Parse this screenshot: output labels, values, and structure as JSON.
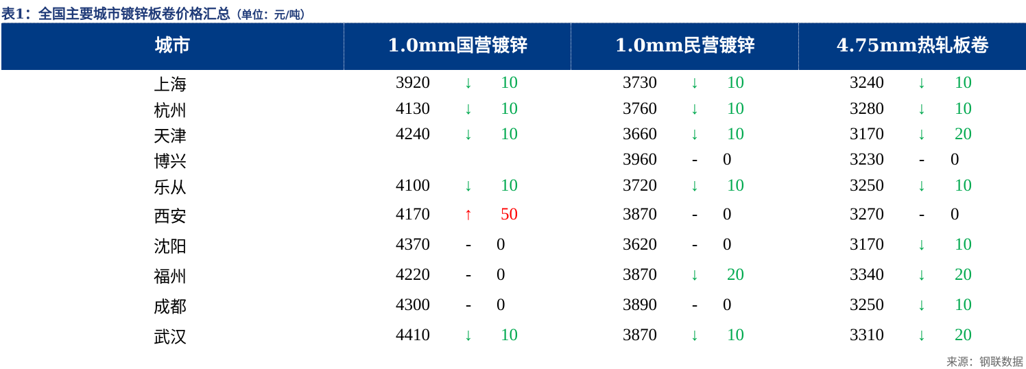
{
  "title": "表1：全国主要城市镀锌板卷价格汇总",
  "unit": "（单位：元/吨）",
  "headers": [
    "城市",
    "1.0mm国营镀锌",
    "1.0mm民营镀锌",
    "4.75mm热轧板卷"
  ],
  "rows": [
    {
      "city": "上海",
      "values": [
        [
          "3920",
          "down",
          "10"
        ],
        [
          "3730",
          "down",
          "10"
        ],
        [
          "3240",
          "down",
          "10"
        ]
      ]
    },
    {
      "city": "杭州",
      "values": [
        [
          "4130",
          "down",
          "10"
        ],
        [
          "3760",
          "down",
          "10"
        ],
        [
          "3280",
          "down",
          "10"
        ]
      ]
    },
    {
      "city": "天津",
      "values": [
        [
          "4240",
          "down",
          "10"
        ],
        [
          "3660",
          "down",
          "10"
        ],
        [
          "3170",
          "down",
          "20"
        ]
      ]
    },
    {
      "city": "博兴",
      "values": [
        [
          "",
          "",
          ""
        ],
        [
          "3960",
          "flat",
          "0"
        ],
        [
          "3230",
          "flat",
          "0"
        ]
      ]
    },
    {
      "city": "乐从",
      "values": [
        [
          "4100",
          "down",
          "10"
        ],
        [
          "3720",
          "down",
          "10"
        ],
        [
          "3250",
          "down",
          "10"
        ]
      ]
    },
    {
      "city": "西安",
      "values": [
        [
          "4170",
          "up",
          "50"
        ],
        [
          "3870",
          "flat",
          "0"
        ],
        [
          "3270",
          "flat",
          "0"
        ]
      ]
    },
    {
      "city": "沈阳",
      "values": [
        [
          "4370",
          "flat",
          "0"
        ],
        [
          "3620",
          "flat",
          "0"
        ],
        [
          "3170",
          "down",
          "10"
        ]
      ]
    },
    {
      "city": "福州",
      "values": [
        [
          "4220",
          "flat",
          "0"
        ],
        [
          "3870",
          "down",
          "20"
        ],
        [
          "3340",
          "down",
          "20"
        ]
      ]
    },
    {
      "city": "成都",
      "values": [
        [
          "4300",
          "flat",
          "0"
        ],
        [
          "3890",
          "flat",
          "0"
        ],
        [
          "3250",
          "down",
          "10"
        ]
      ]
    },
    {
      "city": "武汉",
      "values": [
        [
          "4410",
          "down",
          "10"
        ],
        [
          "3870",
          "down",
          "10"
        ],
        [
          "3310",
          "down",
          "20"
        ]
      ]
    }
  ],
  "symbols": {
    "down": "↓",
    "up": "↑",
    "flat": "-"
  },
  "colors": {
    "header_bg": "#003a84",
    "down": "#00a94f",
    "up": "#ff0000",
    "title": "#1f3a78"
  },
  "source": "来源：钢联数据"
}
